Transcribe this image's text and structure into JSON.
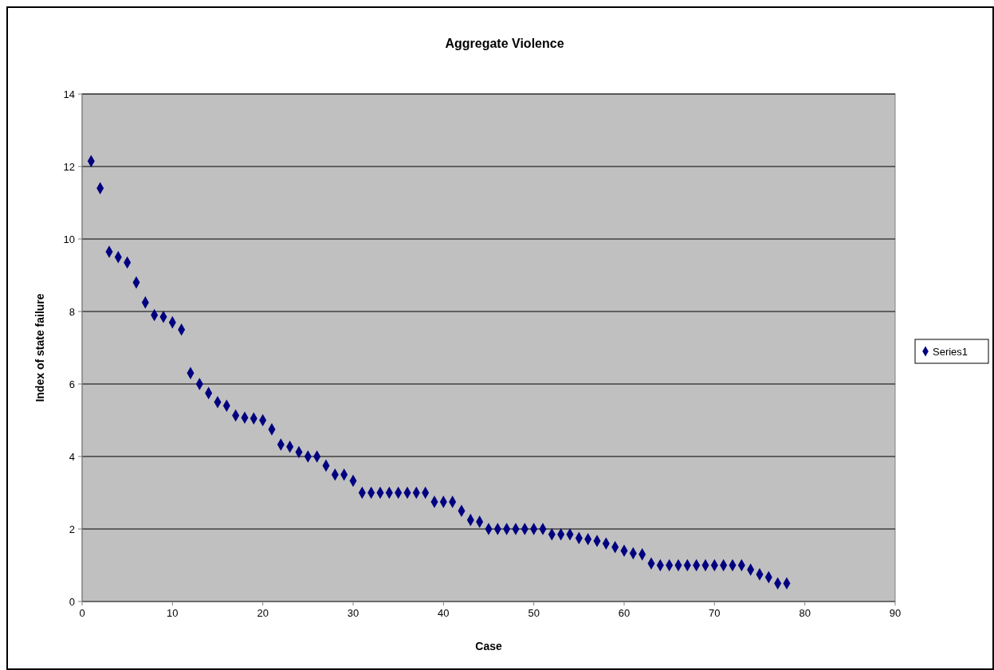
{
  "chart_data": {
    "type": "scatter",
    "title": "Aggregate Violence",
    "xlabel": "Case",
    "ylabel": "Index of state failure",
    "xlim": [
      0,
      90
    ],
    "xticks": [
      0,
      10,
      20,
      30,
      40,
      50,
      60,
      70,
      80,
      90
    ],
    "ylim": [
      0,
      14
    ],
    "yticks": [
      0,
      2,
      4,
      6,
      8,
      10,
      12,
      14
    ],
    "grid": "y",
    "legend": "right",
    "marker": "diamond",
    "series": [
      {
        "name": "Series1",
        "color": "#000080",
        "x": [
          1,
          2,
          3,
          4,
          5,
          6,
          7,
          8,
          9,
          10,
          11,
          12,
          13,
          14,
          15,
          16,
          17,
          18,
          19,
          20,
          21,
          22,
          23,
          24,
          25,
          26,
          27,
          28,
          29,
          30,
          31,
          32,
          33,
          34,
          35,
          36,
          37,
          38,
          39,
          40,
          41,
          42,
          43,
          44,
          45,
          46,
          47,
          48,
          49,
          50,
          51,
          52,
          53,
          54,
          55,
          56,
          57,
          58,
          59,
          60,
          61,
          62,
          63,
          64,
          65,
          66,
          67,
          68,
          69,
          70,
          71,
          72,
          73,
          74,
          75,
          76,
          77,
          78
        ],
        "values": [
          12.15,
          11.4,
          9.65,
          9.5,
          9.35,
          8.8,
          8.25,
          7.9,
          7.85,
          7.7,
          7.5,
          6.3,
          6,
          5.75,
          5.5,
          5.4,
          5.13,
          5.07,
          5.05,
          5,
          4.75,
          4.33,
          4.27,
          4.12,
          4,
          4,
          3.75,
          3.5,
          3.5,
          3.33,
          3,
          3,
          3,
          3,
          3,
          3,
          3,
          3,
          2.75,
          2.75,
          2.75,
          2.5,
          2.25,
          2.2,
          2,
          2,
          2,
          2,
          2,
          2,
          2,
          1.85,
          1.85,
          1.85,
          1.75,
          1.72,
          1.67,
          1.6,
          1.5,
          1.4,
          1.33,
          1.3,
          1.05,
          1,
          1,
          1,
          1,
          1,
          1,
          1,
          1,
          1,
          1,
          0.88,
          0.75,
          0.67,
          0.5,
          0.5
        ]
      }
    ]
  }
}
